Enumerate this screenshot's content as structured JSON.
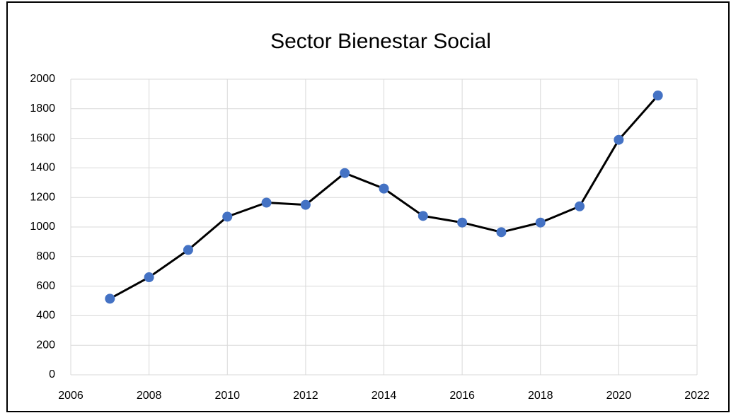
{
  "chart_data": {
    "type": "scatter",
    "title": "Sector Bienestar Social",
    "series": [
      {
        "name": "Sector Bienestar Social",
        "color": "#4472c4",
        "line_color": "#000000",
        "x": [
          2007,
          2008,
          2009,
          2010,
          2011,
          2012,
          2013,
          2014,
          2015,
          2016,
          2017,
          2018,
          2019,
          2020,
          2021
        ],
        "values": [
          515,
          660,
          845,
          1070,
          1165,
          1150,
          1365,
          1260,
          1075,
          1030,
          965,
          1030,
          1140,
          1590,
          1890
        ]
      }
    ],
    "xlim": [
      2006,
      2022
    ],
    "xticks": [
      2006,
      2008,
      2010,
      2012,
      2014,
      2016,
      2018,
      2020,
      2022
    ],
    "ylim": [
      0,
      2000
    ],
    "yticks": [
      0,
      200,
      400,
      600,
      800,
      1000,
      1200,
      1400,
      1600,
      1800,
      2000
    ],
    "grid": true
  }
}
